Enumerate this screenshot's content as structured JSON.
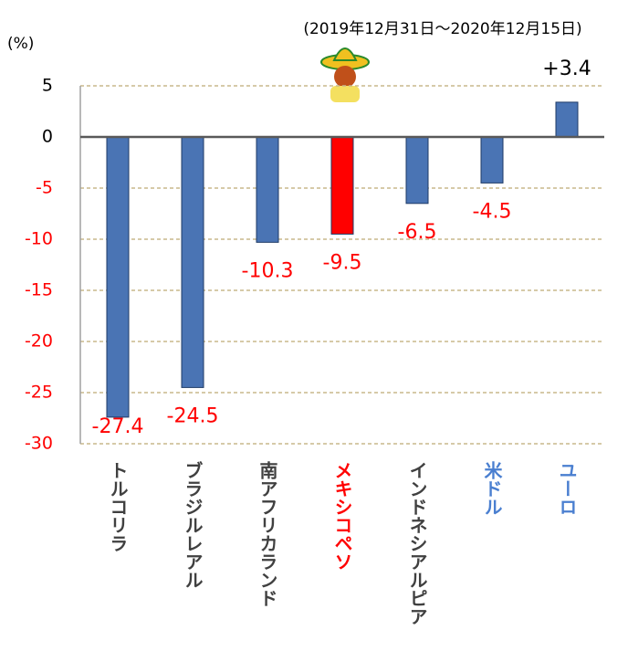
{
  "chart_data": {
    "type": "bar",
    "title": "(2019年12月31日～2020年12月15日)",
    "y_label": "(%)",
    "categories": [
      "トルコリラ",
      "ブラジルレアル",
      "南アフリカランド",
      "メキシコペソ",
      "インドネシアルピア",
      "米ドル",
      "ユーロ"
    ],
    "values": [
      -27.4,
      -24.5,
      -10.3,
      -9.5,
      -6.5,
      -4.5,
      3.4
    ],
    "value_labels": [
      "-27.4",
      "-24.5",
      "-10.3",
      "-9.5",
      "-6.5",
      "-4.5",
      "+3.4"
    ],
    "colors": [
      "#4a74b4",
      "#4a74b4",
      "#4a74b4",
      "#ff0000",
      "#4a74b4",
      "#4a74b4",
      "#4a74b4"
    ],
    "category_label_colors": [
      "#404040",
      "#404040",
      "#404040",
      "#ff0000",
      "#404040",
      "#4a7fd0",
      "#4a7fd0"
    ],
    "value_label_colors": [
      "#ff0000",
      "#ff0000",
      "#ff0000",
      "#ff0000",
      "#ff0000",
      "#ff0000",
      "#000000"
    ],
    "ylim": [
      -30,
      5
    ],
    "yticks": [
      5,
      0,
      -5,
      -10,
      -15,
      -20,
      -25,
      -30
    ],
    "ytick_colors": [
      "#000000",
      "#000000",
      "#ff0000",
      "#ff0000",
      "#ff0000",
      "#ff0000",
      "#ff0000",
      "#ff0000"
    ],
    "grid": true
  }
}
